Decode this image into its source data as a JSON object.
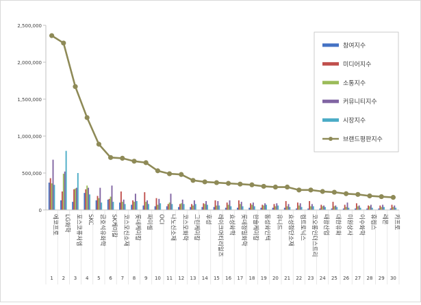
{
  "chart_data": {
    "type": "bar",
    "title": "",
    "xlabel": "",
    "ylabel": "",
    "ylim": [
      0,
      2500000
    ],
    "yticks": [
      "0",
      "500,000",
      "1,000,000",
      "1,500,000",
      "2,000,000",
      "2,500,000"
    ],
    "ytick_values": [
      0,
      500000,
      1000000,
      1500000,
      2000000,
      2500000
    ],
    "grid": false,
    "legend_position": "right",
    "ranks": [
      "1",
      "2",
      "3",
      "4",
      "5",
      "6",
      "7",
      "8",
      "9",
      "10",
      "11",
      "12",
      "13",
      "14",
      "15",
      "16",
      "17",
      "18",
      "19",
      "20",
      "21",
      "22",
      "23",
      "24",
      "25",
      "26",
      "27",
      "28",
      "29",
      "30"
    ],
    "categories": [
      "에코프로",
      "LG화학",
      "포스코퓨처엠",
      "SKC",
      "금호석유화학",
      "SK케미칼",
      "코스모신소재",
      "롯데케미칼",
      "파미셀",
      "OCI",
      "나노신소재",
      "코스모화학",
      "그린케미칼",
      "후성",
      "레이크머티리얼즈",
      "효성화학",
      "롯데정밀화학",
      "한솔케미칼",
      "동성화인텍",
      "유니드",
      "효성첨단소재",
      "켐트로닉스",
      "코오롱인더스트리",
      "태광산업",
      "대한유화",
      "미원상사",
      "이수화학",
      "휴켐스",
      "레몬",
      "카프로"
    ],
    "series": [
      {
        "name": "참여지수",
        "color": "#4472C4",
        "values": [
          370000,
          130000,
          110000,
          230000,
          130000,
          140000,
          100000,
          70000,
          60000,
          50000,
          50000,
          40000,
          40000,
          40000,
          40000,
          30000,
          30000,
          30000,
          30000,
          30000,
          30000,
          20000,
          20000,
          20000,
          20000,
          20000,
          20000,
          20000,
          20000,
          20000
        ]
      },
      {
        "name": "미디어지수",
        "color": "#C0504D",
        "values": [
          430000,
          250000,
          280000,
          280000,
          190000,
          150000,
          250000,
          130000,
          240000,
          160000,
          80000,
          80000,
          80000,
          90000,
          130000,
          100000,
          130000,
          90000,
          70000,
          80000,
          120000,
          100000,
          120000,
          70000,
          110000,
          70000,
          90000,
          60000,
          60000,
          70000
        ]
      },
      {
        "name": "소통지수",
        "color": "#9BBB59",
        "values": [
          360000,
          490000,
          290000,
          330000,
          160000,
          180000,
          110000,
          110000,
          110000,
          70000,
          100000,
          90000,
          60000,
          80000,
          60000,
          70000,
          80000,
          70000,
          60000,
          50000,
          50000,
          60000,
          50000,
          50000,
          50000,
          40000,
          50000,
          50000,
          40000,
          40000
        ]
      },
      {
        "name": "커뮤니티지수",
        "color": "#8064A2",
        "values": [
          680000,
          520000,
          300000,
          300000,
          300000,
          330000,
          140000,
          220000,
          130000,
          150000,
          220000,
          140000,
          130000,
          120000,
          120000,
          130000,
          110000,
          100000,
          90000,
          90000,
          80000,
          90000,
          80000,
          60000,
          60000,
          100000,
          60000,
          70000,
          70000,
          60000
        ]
      },
      {
        "name": "시장지수",
        "color": "#4BACC6",
        "values": [
          340000,
          800000,
          500000,
          210000,
          100000,
          110000,
          80000,
          120000,
          80000,
          90000,
          80000,
          80000,
          80000,
          70000,
          60000,
          50000,
          50000,
          50000,
          70000,
          60000,
          40000,
          40000,
          50000,
          40000,
          40000,
          30000,
          30000,
          30000,
          40000,
          30000
        ]
      },
      {
        "name": "브랜드평판지수",
        "color": "#8E8A57",
        "type": "line",
        "values": [
          2360000,
          2260000,
          1670000,
          1250000,
          890000,
          710000,
          700000,
          660000,
          640000,
          530000,
          490000,
          480000,
          400000,
          380000,
          370000,
          360000,
          350000,
          340000,
          320000,
          310000,
          310000,
          270000,
          270000,
          250000,
          240000,
          220000,
          210000,
          190000,
          180000,
          170000
        ]
      }
    ]
  }
}
